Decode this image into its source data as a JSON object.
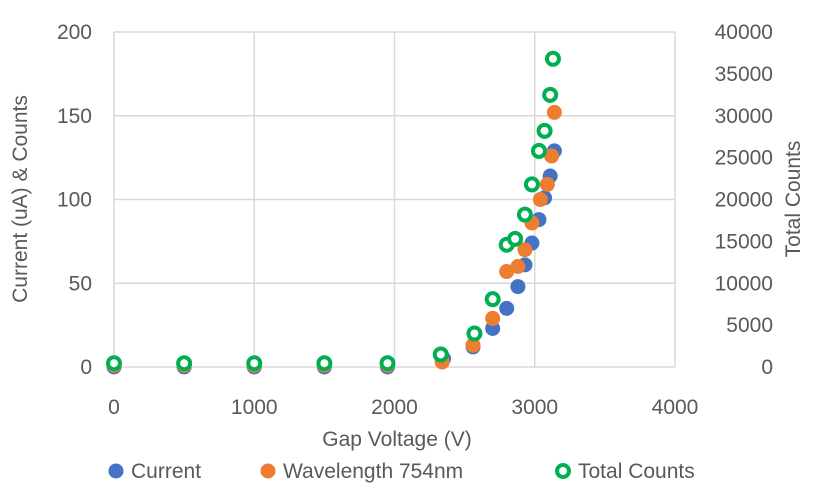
{
  "chart_data": {
    "type": "scatter",
    "xlabel": "Gap Voltage (V)",
    "ylabel": "Current (uA) & Counts",
    "y2label": "Total Counts",
    "xlim": [
      0,
      4000
    ],
    "ylim": [
      0,
      200
    ],
    "y2lim": [
      0,
      40000
    ],
    "xticks": [
      "0",
      "1000",
      "2000",
      "3000",
      "4000"
    ],
    "yticks": [
      "0",
      "50",
      "100",
      "150",
      "200"
    ],
    "y2ticks": [
      "0",
      "5000",
      "10000",
      "15000",
      "20000",
      "25000",
      "30000",
      "35000",
      "40000"
    ],
    "grid": true,
    "legend_position": "bottom",
    "series": [
      {
        "name": "Current",
        "axis": "left",
        "marker": "filled-circle",
        "color": "#4472c4",
        "points": [
          [
            0,
            0
          ],
          [
            500,
            0
          ],
          [
            1000,
            0
          ],
          [
            1500,
            0
          ],
          [
            1950,
            0
          ],
          [
            2350,
            5
          ],
          [
            2560,
            12
          ],
          [
            2700,
            23
          ],
          [
            2800,
            35
          ],
          [
            2880,
            48
          ],
          [
            2930,
            61
          ],
          [
            2980,
            74
          ],
          [
            3030,
            88
          ],
          [
            3070,
            101
          ],
          [
            3110,
            114
          ],
          [
            3140,
            129
          ]
        ]
      },
      {
        "name": "Wavelength 754nm",
        "axis": "left",
        "marker": "filled-circle",
        "color": "#ed7d31",
        "points": [
          [
            0,
            1
          ],
          [
            500,
            1
          ],
          [
            1000,
            1
          ],
          [
            1500,
            1
          ],
          [
            1950,
            1
          ],
          [
            2340,
            3
          ],
          [
            2560,
            13
          ],
          [
            2700,
            29
          ],
          [
            2800,
            57
          ],
          [
            2880,
            60
          ],
          [
            2930,
            70
          ],
          [
            2980,
            86
          ],
          [
            3040,
            100
          ],
          [
            3090,
            109
          ],
          [
            3120,
            126
          ],
          [
            3140,
            152
          ]
        ]
      },
      {
        "name": "Total Counts",
        "axis": "right",
        "marker": "hollow-circle",
        "color": "#00b050",
        "points": [
          [
            0,
            450
          ],
          [
            500,
            450
          ],
          [
            1000,
            450
          ],
          [
            1500,
            450
          ],
          [
            1950,
            450
          ],
          [
            2330,
            1500
          ],
          [
            2570,
            4000
          ],
          [
            2700,
            8100
          ],
          [
            2800,
            14600
          ],
          [
            2860,
            15300
          ],
          [
            2930,
            18200
          ],
          [
            2980,
            21800
          ],
          [
            3030,
            25800
          ],
          [
            3070,
            28200
          ],
          [
            3110,
            32500
          ],
          [
            3130,
            36800
          ]
        ]
      }
    ]
  }
}
